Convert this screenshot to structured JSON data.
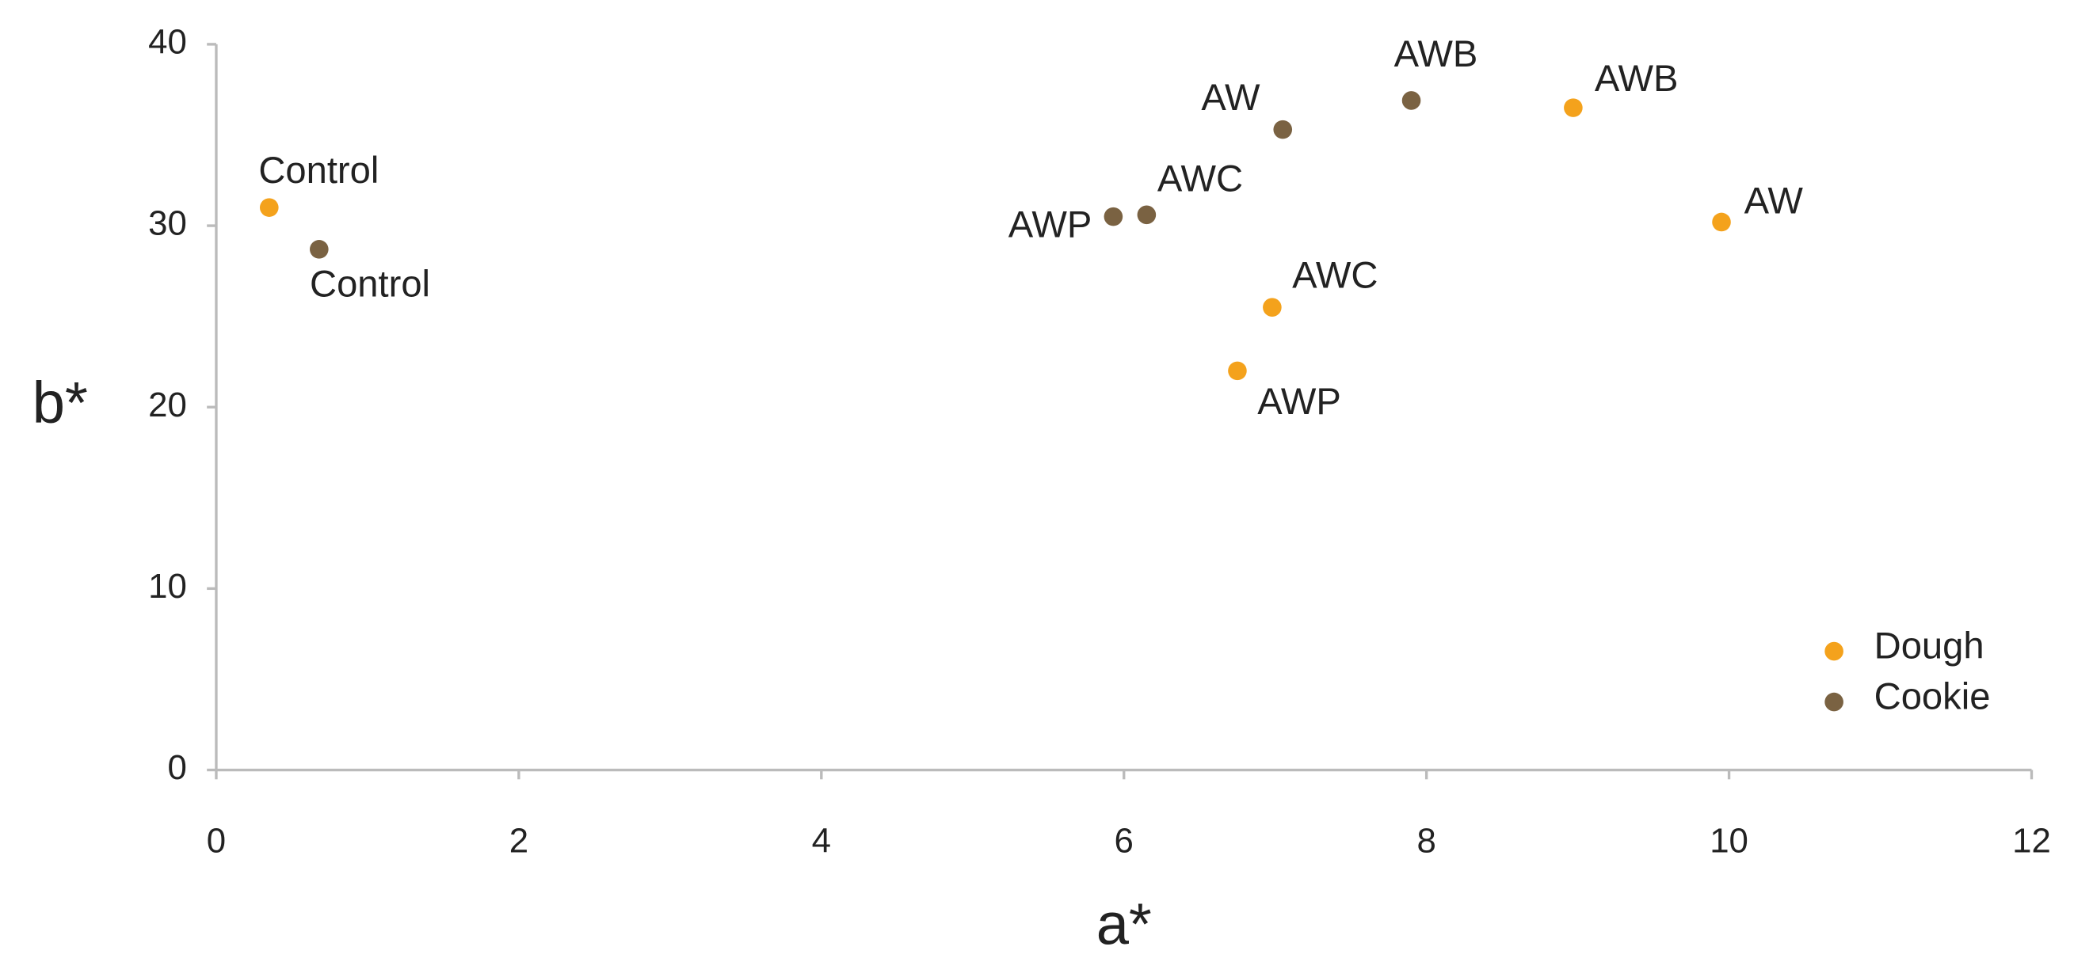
{
  "chart_data": {
    "type": "scatter",
    "xlabel": "a*",
    "ylabel": "b*",
    "xlim": [
      0,
      12
    ],
    "xticks": [
      0,
      2,
      4,
      6,
      8,
      10,
      12
    ],
    "ylim": [
      0,
      40
    ],
    "yticks": [
      0,
      10,
      20,
      30,
      40
    ],
    "grid": false,
    "legend": "lower right",
    "series": [
      {
        "name": "Dough",
        "color": "#f4a21c",
        "x": [
          0.35,
          6.98,
          6.75,
          8.97,
          9.95
        ],
        "y": [
          31,
          25.5,
          22,
          36.5,
          30.2
        ],
        "labels": [
          "Control",
          "AWC",
          "AWP",
          "AWB",
          "AW"
        ]
      },
      {
        "name": "Cookie",
        "color": "#7a6242",
        "x": [
          0.68,
          5.93,
          6.15,
          7.05,
          7.9
        ],
        "y": [
          28.7,
          30.5,
          30.6,
          35.3,
          36.9
        ],
        "labels": [
          "Control",
          "AWP",
          "AWC",
          "AW",
          "AWB"
        ]
      }
    ]
  }
}
